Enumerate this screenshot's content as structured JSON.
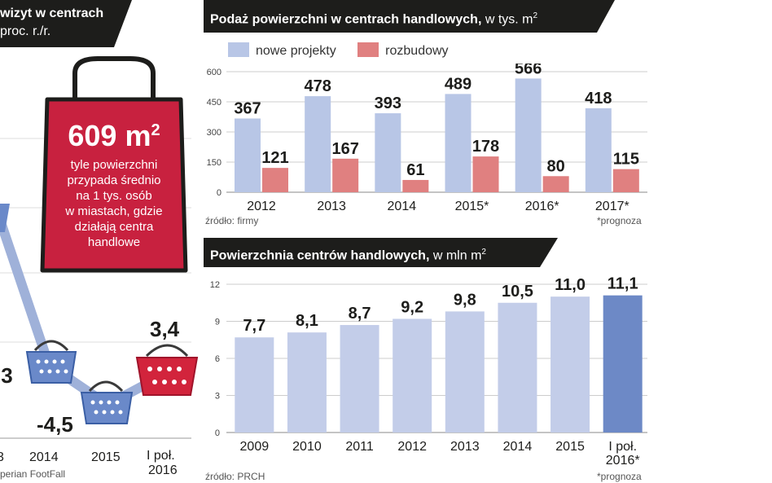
{
  "left_panel": {
    "title_line1": "wizyt w centrach",
    "title_line2": "proc. r./r.",
    "bag_value": "609 m",
    "bag_sup": "2",
    "bag_text": [
      "tyle powierzchni",
      "przypada średnio",
      "na 1 tys. osób",
      "w miastach, gdzie",
      "działają centra",
      "handlowe"
    ],
    "partial_value": ",3",
    "points": [
      {
        "label": "2014",
        "value": "-4,5"
      },
      {
        "label": "2015",
        "value": ""
      },
      {
        "label": "I poł. 2016",
        "value": "3,4"
      }
    ],
    "x_labels": [
      "3",
      "2014",
      "2015",
      "I poł.",
      "2016"
    ],
    "source": "perian FootFall",
    "colors": {
      "bag": "#c8213f",
      "basket_blue": "#6a89c9",
      "basket_red": "#d2243c",
      "line": "#9fb1d9"
    }
  },
  "top_chart": {
    "title": "Podaż powierzchni w centrach handlowych,",
    "unit": "w tys. m",
    "unit_sup": "2",
    "source": "źródło: firmy",
    "note": "*prognoza"
  },
  "bottom_chart": {
    "title": "Powierzchnia centrów handlowych,",
    "unit": "w mln m",
    "unit_sup": "2",
    "source": "źródło: PRCH",
    "note": "*prognoza"
  },
  "chart_data": [
    {
      "type": "bar",
      "title": "Podaż powierzchni w centrach handlowych, w tys. m2",
      "categories": [
        "2012",
        "2013",
        "2014",
        "2015*",
        "2016*",
        "2017*"
      ],
      "series": [
        {
          "name": "nowe projekty",
          "values": [
            367,
            478,
            393,
            489,
            566,
            418
          ],
          "labels": [
            "367",
            "478",
            "393",
            "489",
            "566",
            "418"
          ],
          "color": "#b8c6e6"
        },
        {
          "name": "rozbudowy",
          "values": [
            121,
            167,
            61,
            178,
            80,
            115
          ],
          "labels": [
            "121",
            "167",
            "61",
            "178",
            "80",
            "115"
          ],
          "color": "#e08080"
        }
      ],
      "yticks": [
        0,
        150,
        300,
        450,
        600
      ],
      "ylim": [
        0,
        600
      ],
      "grid": true,
      "legend": "top-left"
    },
    {
      "type": "bar",
      "title": "Powierzchnia centrów handlowych, w mln m2",
      "categories": [
        "2009",
        "2010",
        "2011",
        "2012",
        "2013",
        "2014",
        "2015",
        "I poł. 2016*"
      ],
      "values": [
        7.7,
        8.1,
        8.7,
        9.2,
        9.8,
        10.5,
        11.0,
        11.1
      ],
      "labels": [
        "7,7",
        "8,1",
        "8,7",
        "9,2",
        "9,8",
        "10,5",
        "11,0",
        "11,1"
      ],
      "colors": [
        "#c3cde9",
        "#c3cde9",
        "#c3cde9",
        "#c3cde9",
        "#c3cde9",
        "#c3cde9",
        "#c3cde9",
        "#6d89c6"
      ],
      "yticks": [
        0,
        3,
        6,
        9,
        12
      ],
      "ylim": [
        0,
        12
      ],
      "grid": true
    }
  ]
}
